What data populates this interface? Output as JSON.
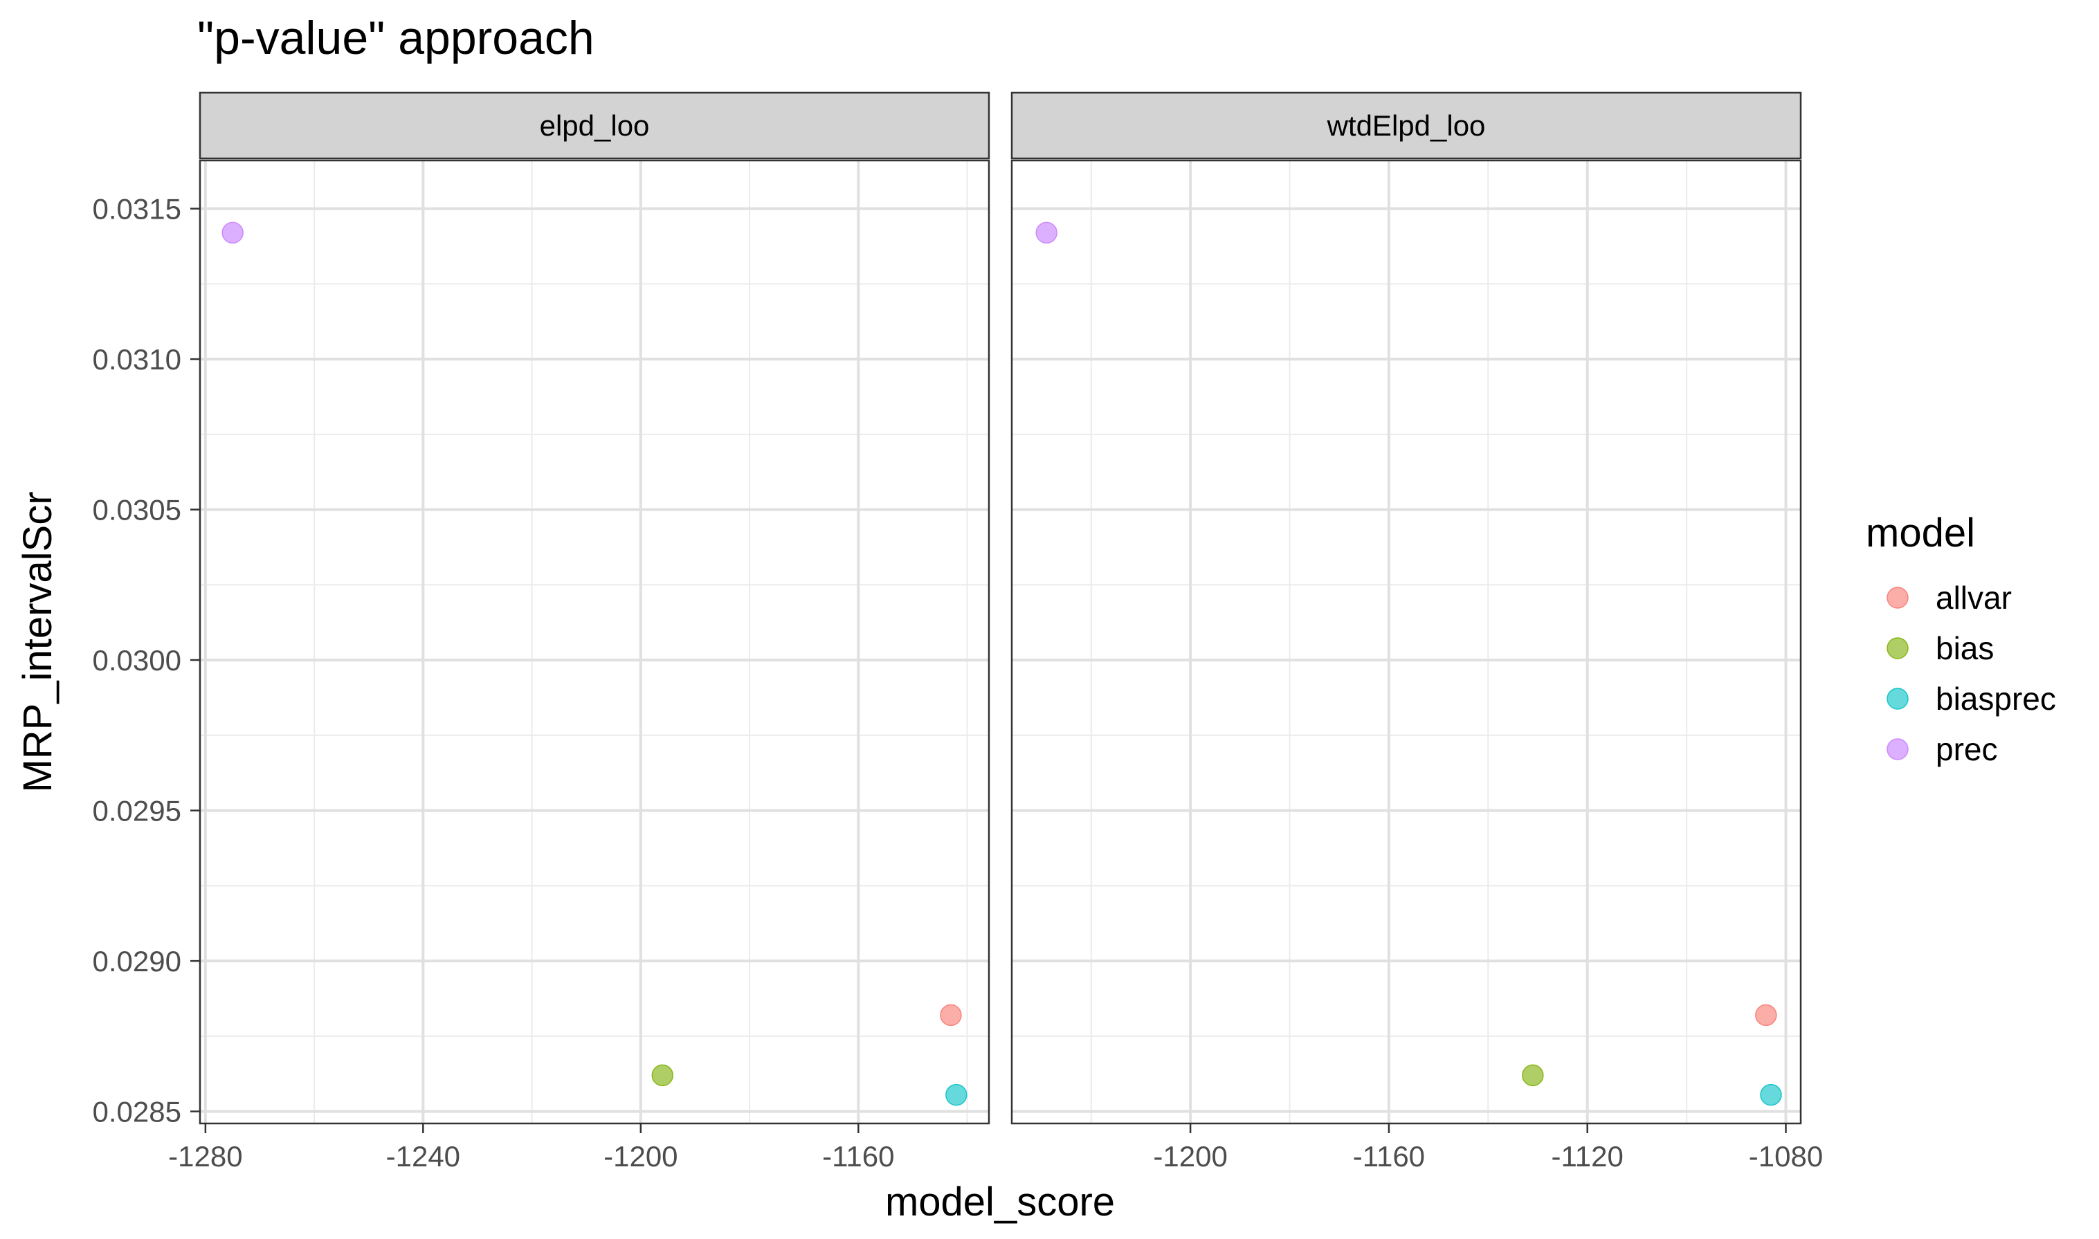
{
  "chart_data": {
    "type": "scatter",
    "title": "\"p-value\" approach",
    "xlabel": "model_score",
    "ylabel": "MRP_intervalScr",
    "legend": {
      "title": "model",
      "placement": "right",
      "items": [
        {
          "name": "allvar",
          "color": "#F8766D"
        },
        {
          "name": "bias",
          "color": "#7CAE00"
        },
        {
          "name": "biasprec",
          "color": "#00BFC4"
        },
        {
          "name": "prec",
          "color": "#C77CFF"
        }
      ]
    },
    "y_axis": {
      "range": [
        0.02846,
        0.03166
      ],
      "ticks": [
        0.0285,
        0.029,
        0.0295,
        0.03,
        0.0305,
        0.031,
        0.0315
      ],
      "tick_labels": [
        "0.0285",
        "0.0290",
        "0.0295",
        "0.0300",
        "0.0305",
        "0.0310",
        "0.0315"
      ]
    },
    "grid": true,
    "point_opacity": 0.6,
    "panels": [
      {
        "strip_label": "elpd_loo",
        "xlim": [
          -1281,
          -1136
        ],
        "x_ticks": [
          -1280,
          -1240,
          -1200,
          -1160
        ],
        "x_tick_labels": [
          "-1280",
          "-1240",
          "-1200",
          "-1160"
        ],
        "x_minor": [
          -1260,
          -1220,
          -1180,
          -1140
        ],
        "points": [
          {
            "model": "prec",
            "x": -1275,
            "y": 0.03142
          },
          {
            "model": "bias",
            "x": -1196,
            "y": 0.02862
          },
          {
            "model": "allvar",
            "x": -1143,
            "y": 0.02882
          },
          {
            "model": "biasprec",
            "x": -1142,
            "y": 0.028555
          }
        ]
      },
      {
        "strip_label": "wtdElpd_loo",
        "xlim": [
          -1236,
          -1077
        ],
        "x_ticks": [
          -1200,
          -1160,
          -1120,
          -1080
        ],
        "x_tick_labels": [
          "-1200",
          "-1160",
          "-1120",
          "-1080"
        ],
        "x_minor": [
          -1220,
          -1180,
          -1140,
          -1100
        ],
        "points": [
          {
            "model": "prec",
            "x": -1229,
            "y": 0.03142
          },
          {
            "model": "bias",
            "x": -1131,
            "y": 0.02862
          },
          {
            "model": "allvar",
            "x": -1084,
            "y": 0.02882
          },
          {
            "model": "biasprec",
            "x": -1083,
            "y": 0.028555
          }
        ]
      }
    ]
  }
}
